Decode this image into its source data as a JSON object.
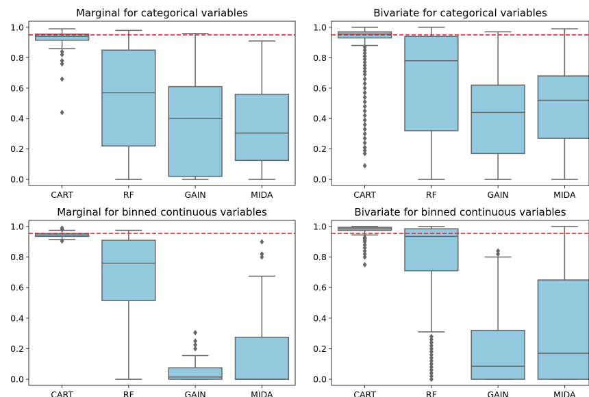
{
  "colors": {
    "box_fill": "#92c9df",
    "box_edge": "#666666",
    "ref_line": "#e31a1c",
    "axis": "#000000"
  },
  "chart_data": [
    {
      "type": "boxplot",
      "title": "Marginal for categorical variables",
      "categories": [
        "CART",
        "RF",
        "GAIN",
        "MIDA"
      ],
      "ylim": [
        -0.04,
        1.04
      ],
      "yticks": [
        "0.0",
        "0.2",
        "0.4",
        "0.6",
        "0.8",
        "1.0"
      ],
      "reference_line": 0.95,
      "boxes": [
        {
          "whislo": 0.86,
          "q1": 0.915,
          "med": 0.94,
          "q3": 0.955,
          "whishi": 0.99,
          "fliers": [
            0.44,
            0.66,
            0.76,
            0.78,
            0.82,
            0.84
          ]
        },
        {
          "whislo": 0.0,
          "q1": 0.22,
          "med": 0.57,
          "q3": 0.85,
          "whishi": 0.98,
          "fliers": []
        },
        {
          "whislo": 0.0,
          "q1": 0.02,
          "med": 0.4,
          "q3": 0.61,
          "whishi": 0.96,
          "fliers": []
        },
        {
          "whislo": 0.0,
          "q1": 0.125,
          "med": 0.305,
          "q3": 0.56,
          "whishi": 0.91,
          "fliers": []
        }
      ]
    },
    {
      "type": "boxplot",
      "title": "Bivariate for categorical variables",
      "categories": [
        "CART",
        "RF",
        "GAIN",
        "MIDA"
      ],
      "ylim": [
        -0.04,
        1.04
      ],
      "yticks": [
        "0.0",
        "0.2",
        "0.4",
        "0.6",
        "0.8",
        "1.0"
      ],
      "reference_line": 0.95,
      "boxes": [
        {
          "whislo": 0.88,
          "q1": 0.93,
          "med": 0.955,
          "q3": 0.97,
          "whishi": 1.0,
          "fliers": [
            0.09,
            0.17,
            0.19,
            0.21,
            0.24,
            0.27,
            0.3,
            0.33,
            0.36,
            0.39,
            0.42,
            0.45,
            0.48,
            0.51,
            0.54,
            0.57,
            0.6,
            0.63,
            0.66,
            0.69,
            0.71,
            0.73,
            0.75,
            0.77,
            0.79,
            0.81,
            0.83,
            0.85,
            0.87
          ]
        },
        {
          "whislo": 0.0,
          "q1": 0.32,
          "med": 0.78,
          "q3": 0.94,
          "whishi": 1.0,
          "fliers": []
        },
        {
          "whislo": 0.0,
          "q1": 0.17,
          "med": 0.44,
          "q3": 0.62,
          "whishi": 0.97,
          "fliers": []
        },
        {
          "whislo": 0.0,
          "q1": 0.27,
          "med": 0.52,
          "q3": 0.68,
          "whishi": 0.99,
          "fliers": []
        }
      ]
    },
    {
      "type": "boxplot",
      "title": "Marginal for binned continuous variables",
      "categories": [
        "CART",
        "RF",
        "GAIN",
        "MIDA"
      ],
      "ylim": [
        -0.04,
        1.04
      ],
      "yticks": [
        "0.0",
        "0.2",
        "0.4",
        "0.6",
        "0.8",
        "1.0"
      ],
      "reference_line": 0.955,
      "boxes": [
        {
          "whislo": 0.915,
          "q1": 0.935,
          "med": 0.945,
          "q3": 0.955,
          "whishi": 0.975,
          "fliers": [
            0.905,
            0.98,
            0.99
          ]
        },
        {
          "whislo": 0.0,
          "q1": 0.515,
          "med": 0.76,
          "q3": 0.91,
          "whishi": 0.975,
          "fliers": []
        },
        {
          "whislo": 0.0,
          "q1": 0.0,
          "med": 0.015,
          "q3": 0.075,
          "whishi": 0.155,
          "fliers": [
            0.2,
            0.225,
            0.25,
            0.305
          ]
        },
        {
          "whislo": 0.0,
          "q1": 0.0,
          "med": 0.0,
          "q3": 0.275,
          "whishi": 0.675,
          "fliers": [
            0.8,
            0.82,
            0.9
          ]
        }
      ]
    },
    {
      "type": "boxplot",
      "title": "Bivariate for binned continuous variables",
      "categories": [
        "CART",
        "RF",
        "GAIN",
        "MIDA"
      ],
      "ylim": [
        -0.04,
        1.04
      ],
      "yticks": [
        "0.0",
        "0.2",
        "0.4",
        "0.6",
        "0.8",
        "1.0"
      ],
      "reference_line": 0.955,
      "boxes": [
        {
          "whislo": 0.945,
          "q1": 0.975,
          "med": 0.985,
          "q3": 0.995,
          "whishi": 1.0,
          "fliers": [
            0.75,
            0.8,
            0.82,
            0.84,
            0.86,
            0.88,
            0.9,
            0.91,
            0.92,
            0.93
          ]
        },
        {
          "whislo": 0.31,
          "q1": 0.71,
          "med": 0.935,
          "q3": 0.985,
          "whishi": 1.0,
          "fliers": [
            0.0,
            0.02,
            0.04,
            0.06,
            0.08,
            0.1,
            0.12,
            0.14,
            0.16,
            0.18,
            0.2,
            0.22,
            0.24,
            0.26,
            0.28
          ]
        },
        {
          "whislo": 0.0,
          "q1": 0.0,
          "med": 0.085,
          "q3": 0.32,
          "whishi": 0.8,
          "fliers": [
            0.82,
            0.84
          ]
        },
        {
          "whislo": 0.0,
          "q1": 0.0,
          "med": 0.17,
          "q3": 0.65,
          "whishi": 1.0,
          "fliers": []
        }
      ]
    }
  ]
}
